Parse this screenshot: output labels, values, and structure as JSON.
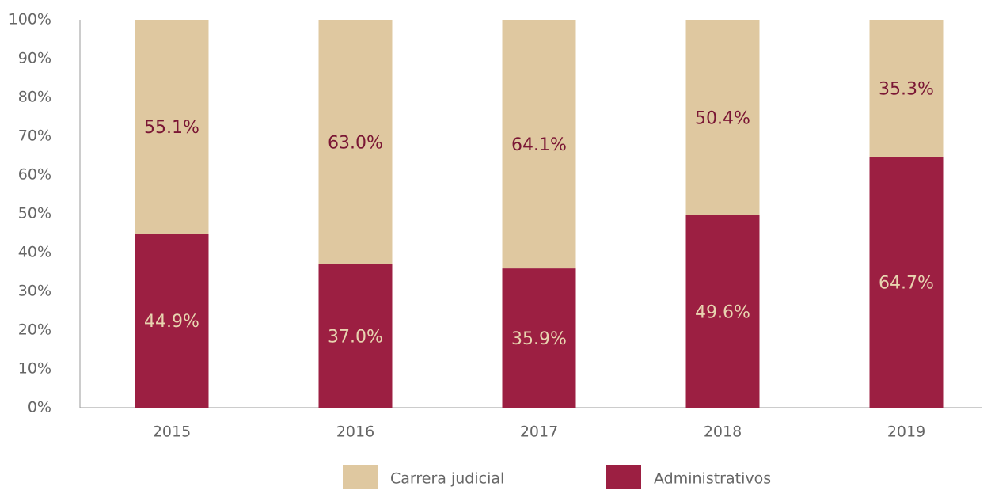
{
  "chart_data": {
    "type": "stacked_bar",
    "categories": [
      "2015",
      "2016",
      "2017",
      "2018",
      "2019"
    ],
    "series": [
      {
        "name": "Carrera judicial",
        "color": "#dfc8a0",
        "label_color": "#7a1634",
        "values": [
          55.1,
          63.0,
          64.1,
          50.4,
          35.3
        ],
        "value_labels": [
          "55.1%",
          "63.0%",
          "64.1%",
          "50.4%",
          "35.3%"
        ]
      },
      {
        "name": "Administrativos",
        "color": "#9c1f42",
        "label_color": "#e8d4b0",
        "values": [
          44.9,
          37.0,
          35.9,
          49.6,
          64.7
        ],
        "value_labels": [
          "44.9%",
          "37.0%",
          "35.9%",
          "49.6%",
          "64.7%"
        ]
      }
    ],
    "ylim": [
      0,
      100
    ],
    "yticks": [
      {
        "value": 0,
        "label": "0%"
      },
      {
        "value": 10,
        "label": "10%"
      },
      {
        "value": 20,
        "label": "20%"
      },
      {
        "value": 30,
        "label": "30%"
      },
      {
        "value": 40,
        "label": "40%"
      },
      {
        "value": 50,
        "label": "50%"
      },
      {
        "value": 60,
        "label": "60%"
      },
      {
        "value": 70,
        "label": "70%"
      },
      {
        "value": 80,
        "label": "80%"
      },
      {
        "value": 90,
        "label": "90%"
      },
      {
        "value": 100,
        "label": "100%"
      }
    ],
    "grid": false,
    "legend": "bottom"
  }
}
